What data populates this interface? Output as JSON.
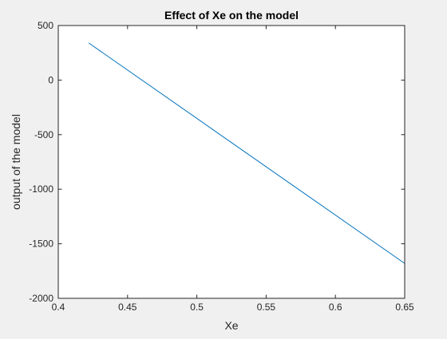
{
  "chart_data": {
    "type": "line",
    "title": "Effect of Xe on the model",
    "xlabel": "Xe",
    "ylabel": "output of the model",
    "xlim": [
      0.4,
      0.65
    ],
    "ylim": [
      -2000,
      500
    ],
    "x_ticks": [
      0.4,
      0.45,
      0.5,
      0.55,
      0.6,
      0.65
    ],
    "x_tick_labels": [
      "0.4",
      "0.45",
      "0.5",
      "0.55",
      "0.6",
      "0.65"
    ],
    "y_ticks": [
      -2000,
      -1500,
      -1000,
      -500,
      0,
      500
    ],
    "y_tick_labels": [
      "-2000",
      "-1500",
      "-1000",
      "-500",
      "0",
      "500"
    ],
    "grid": false,
    "series": [
      {
        "color": "#0072bd",
        "x": [
          0.422,
          0.65
        ],
        "y": [
          340,
          -1680
        ]
      }
    ]
  }
}
